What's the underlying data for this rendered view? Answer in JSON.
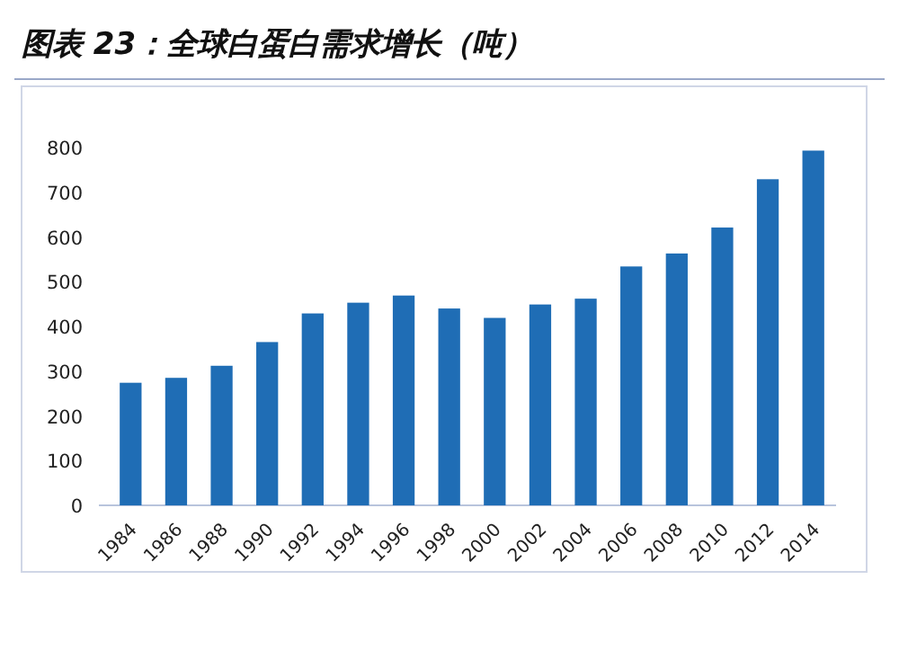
{
  "chart_data": {
    "type": "bar",
    "title": "图表 23：全球白蛋白需求增长（吨）",
    "categories": [
      "1984",
      "1986",
      "1988",
      "1990",
      "1992",
      "1994",
      "1996",
      "1998",
      "2000",
      "2002",
      "2004",
      "2006",
      "2008",
      "2010",
      "2012",
      "2014"
    ],
    "values": [
      274,
      285,
      312,
      365,
      429,
      453,
      469,
      440,
      419,
      449,
      462,
      534,
      563,
      621,
      729,
      793
    ],
    "color": "#1f6db5",
    "ylim": [
      0,
      800
    ],
    "yticks": [
      0,
      100,
      200,
      300,
      400,
      500,
      600,
      700,
      800
    ]
  }
}
